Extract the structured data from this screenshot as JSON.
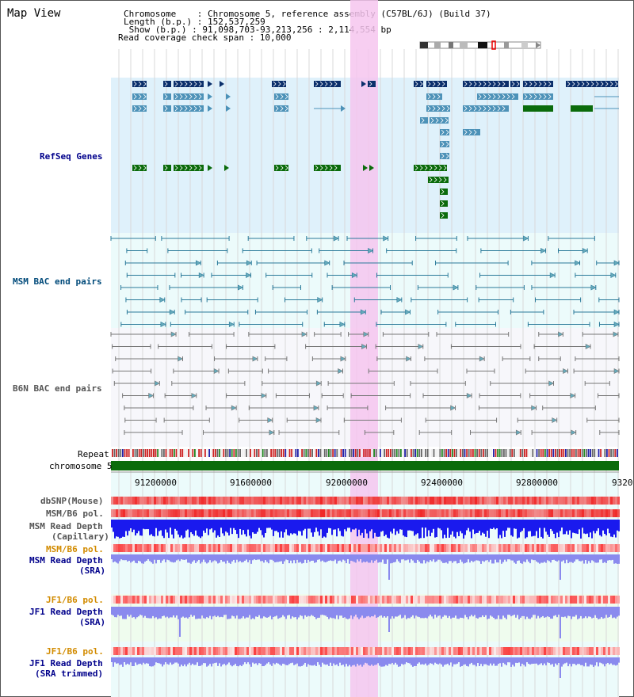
{
  "header": {
    "title": "Map View",
    "chromosome_line": "Chromosome    : Chromosome 5, reference assembly (C57BL/6J) (Build 37)",
    "length_line": "Length (b.p.) : 152,537,259",
    "show_line": " Show (b.p.) : 91,098,703-93,213,256 : 2,114,554 bp",
    "coverage_line": "Read coverage check span : 10,000"
  },
  "tracks": {
    "refseq": "RefSeq Genes",
    "msm_bac": "MSM BAC end pairs",
    "b6n_bac": "B6N BAC end pairs",
    "repeat": "Repeat",
    "chromosome": "chromosome 5",
    "dbsnp": "dbSNP(Mouse)",
    "msm_b6_pol_1": "MSM/B6 pol.",
    "msm_read_depth_cap": "MSM Read Depth",
    "msm_read_depth_cap_sub": "(Capillary)",
    "msm_b6_pol_2": "MSM/B6 pol.",
    "msm_read_depth_sra": "MSM Read Depth",
    "msm_read_depth_sra_sub": "(SRA)",
    "jf1_b6_pol_1": "JF1/B6 pol.",
    "jf1_read_depth_sra": "JF1 Read Depth",
    "jf1_read_depth_sra_sub": "(SRA)",
    "jf1_b6_pol_2": "JF1/B6 pol.",
    "jf1_read_depth_trim": "JF1 Read Depth",
    "jf1_read_depth_trim_sub": "(SRA trimmed)"
  },
  "axis": {
    "ticks": [
      "91200000",
      "91600000",
      "92000000",
      "92400000",
      "92800000",
      "9320"
    ]
  },
  "colors": {
    "refseq_bg": "#dff1fb",
    "msm_bac_bg": "#ecfbfb",
    "b6n_bac_bg": "#f7f7fb",
    "highlight": "#f6c6ee",
    "gene_dark": "#0b2f6b",
    "gene_mid": "#4d92b8",
    "gene_green": "#0b6b0b",
    "chromosome_bar": "#0b6b0b",
    "depth_blue": "#1a1aee",
    "depth_light": "#8a8aee"
  }
}
